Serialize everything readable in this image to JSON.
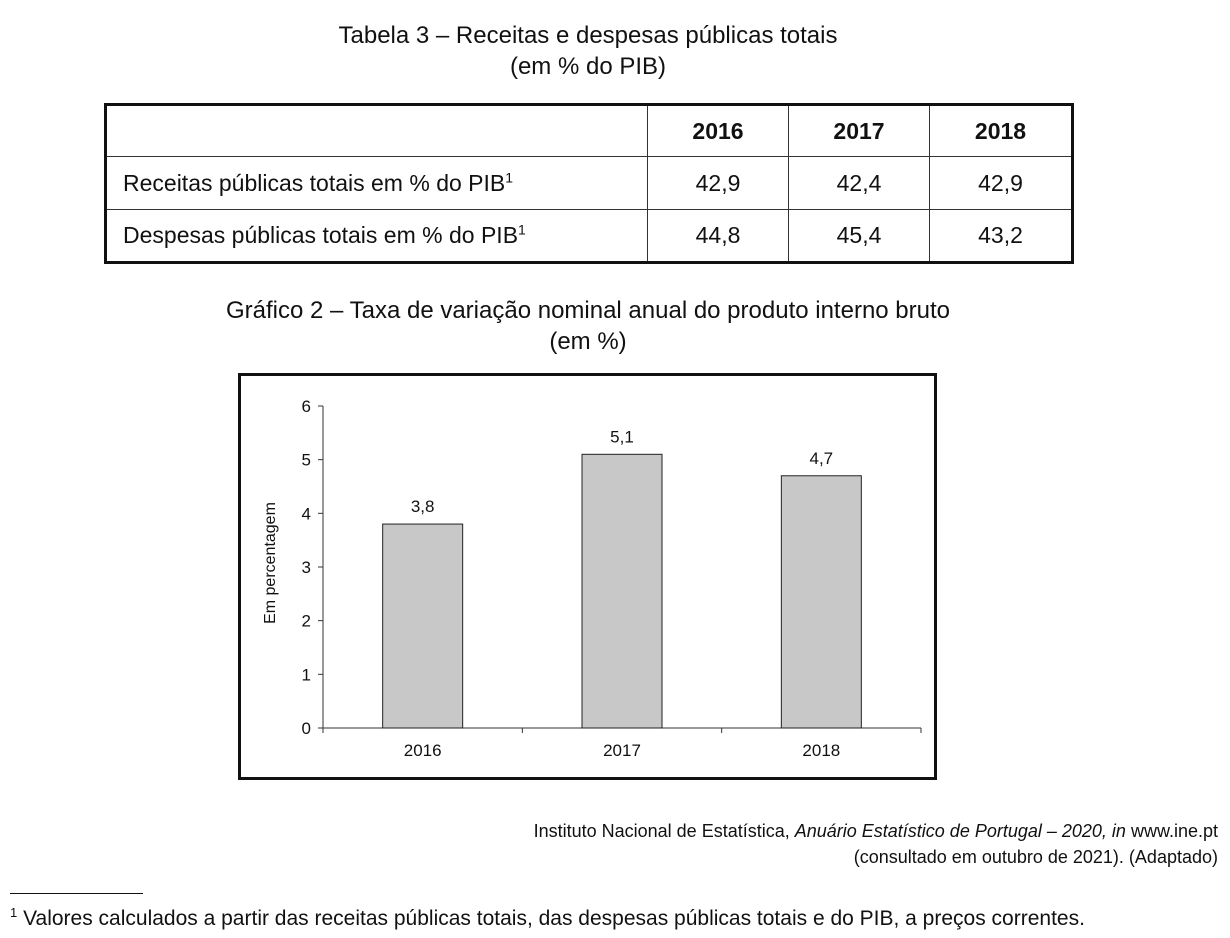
{
  "table": {
    "title": "Tabela 3 – Receitas e despesas públicas totais",
    "subtitle": "(em % do PIB)",
    "columns": [
      "2016",
      "2017",
      "2018"
    ],
    "rows": [
      {
        "label": "Receitas públicas totais em % do PIB",
        "note": "1",
        "values": [
          "42,9",
          "42,4",
          "42,9"
        ]
      },
      {
        "label": "Despesas públicas totais em % do PIB",
        "note": "1",
        "values": [
          "44,8",
          "45,4",
          "43,2"
        ]
      }
    ]
  },
  "chart": {
    "title": "Gráfico 2 – Taxa de variação nominal anual do produto interno bruto",
    "subtitle": "(em %)"
  },
  "chart_data": {
    "type": "bar",
    "categories": [
      "2016",
      "2017",
      "2018"
    ],
    "values": [
      3.8,
      5.1,
      4.7
    ],
    "data_labels": [
      "3,8",
      "5,1",
      "4,7"
    ],
    "title": "Gráfico 2 – Taxa de variação nominal anual do produto interno bruto",
    "xlabel": "",
    "ylabel": "Em percentagem",
    "ylim": [
      0,
      6
    ],
    "yticks": [
      "0",
      "1",
      "2",
      "3",
      "4",
      "5",
      "6"
    ],
    "grid": false,
    "bar_color": "#c8c8c8"
  },
  "source": {
    "line1_prefix": "Instituto Nacional de Estatística, ",
    "line1_italic": "Anuário Estatístico de Portugal – 2020, in",
    "line1_suffix": " www.ine.pt",
    "line2": "(consultado em outubro de 2021). (Adaptado)"
  },
  "footnote": {
    "mark": "1",
    "text": "Valores calculados a partir das receitas públicas totais, das despesas públicas totais e do PIB, a preços correntes."
  }
}
